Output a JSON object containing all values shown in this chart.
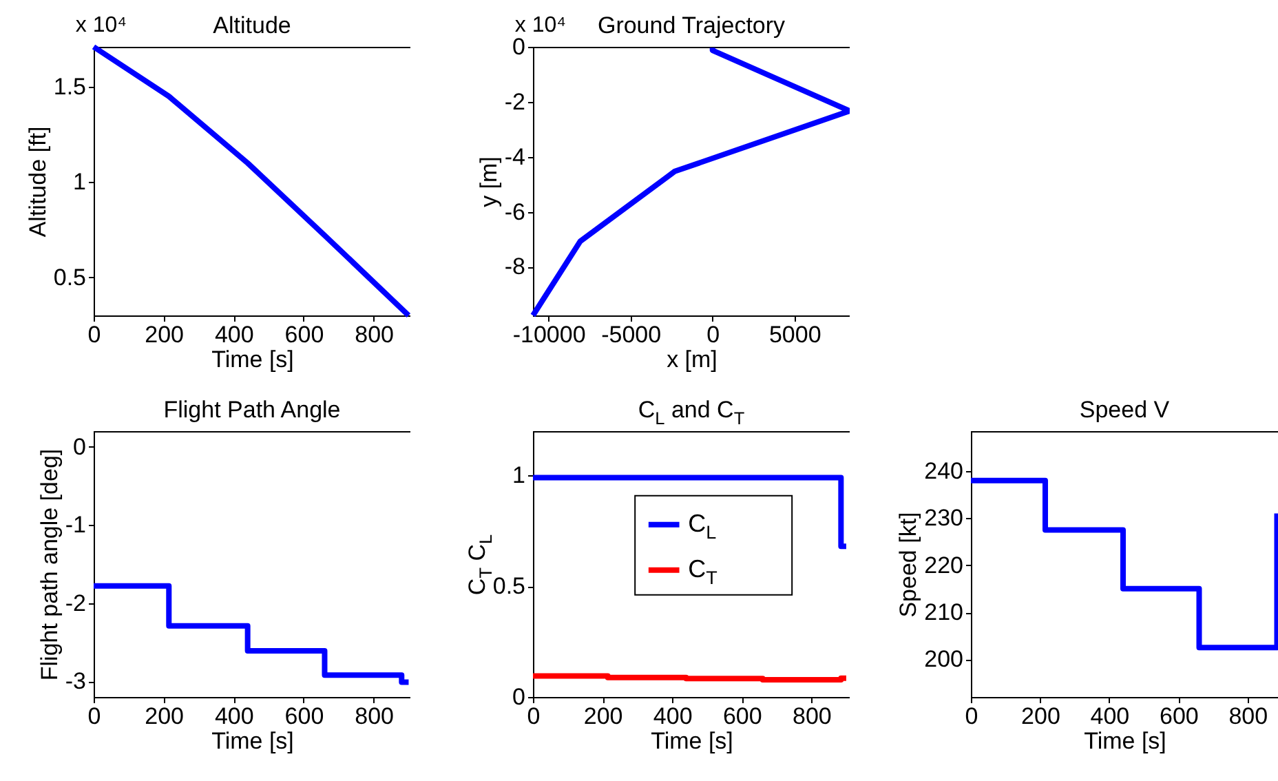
{
  "chart_data": [
    {
      "type": "line",
      "title": "Altitude",
      "xlabel": "Time [s]",
      "ylabel": "Altitude [ft]",
      "annotations": [
        "x 10⁴"
      ],
      "x": [
        0,
        215,
        440,
        660,
        900
      ],
      "series": [
        {
          "color": "#0000ff",
          "values": [
            1.71,
            1.45,
            1.1,
            0.72,
            0.3
          ]
        }
      ],
      "xlim": [
        0,
        905
      ],
      "xticks": [
        0,
        200,
        400,
        600,
        800
      ],
      "ylim": [
        0.3,
        1.71
      ],
      "yticks": [
        0.5,
        1,
        1.5
      ]
    },
    {
      "type": "line",
      "title": "Ground Trajectory",
      "xlabel": "x [m]",
      "ylabel": "y [m]",
      "annotations": [
        "x 10⁴"
      ],
      "series": [
        {
          "color": "#0000ff",
          "x": [
            0,
            0,
            8370,
            -2300,
            -8060,
            -10950
          ],
          "values": [
            -0.03,
            -0.13,
            -2.33,
            -4.53,
            -7.07,
            -9.77
          ]
        }
      ],
      "xlim": [
        -10950,
        8370
      ],
      "xticks": [
        -10000,
        -5000,
        0,
        5000
      ],
      "ylim": [
        -9.77,
        0
      ],
      "yticks": [
        -8,
        -6,
        -4,
        -2,
        0
      ]
    },
    {
      "type": "step",
      "title": "Flight Path Angle",
      "xlabel": "Time [s]",
      "ylabel": "Flight path angle [deg]",
      "x": [
        0,
        215,
        440,
        660,
        880,
        900
      ],
      "series": [
        {
          "color": "#0000ff",
          "values": [
            -1.78,
            -2.29,
            -2.61,
            -2.92,
            -3.01,
            -3.01
          ]
        }
      ],
      "xlim": [
        0,
        905
      ],
      "xticks": [
        0,
        200,
        400,
        600,
        800
      ],
      "ylim": [
        -3.2,
        0.2
      ],
      "yticks": [
        -3,
        -2,
        -1,
        0
      ]
    },
    {
      "type": "step",
      "title": "C$_{L}$ and C$_{T}$",
      "xlabel": "Time [s]",
      "ylabel": "C$_{T}$  C$_{L}$",
      "x": [
        0,
        215,
        440,
        660,
        885,
        900
      ],
      "series": [
        {
          "name": "C$_{L}$",
          "color": "#0000ff",
          "values": [
            0.99,
            0.99,
            0.99,
            0.99,
            0.68,
            0.68
          ]
        },
        {
          "name": "C$_{T}$",
          "color": "#ff0000",
          "values": [
            0.095,
            0.088,
            0.083,
            0.078,
            0.085,
            0.085
          ]
        }
      ],
      "legend": "top",
      "xlim": [
        0,
        910
      ],
      "xticks": [
        0,
        200,
        400,
        600,
        800
      ],
      "ylim": [
        0,
        1.2
      ],
      "yticks": [
        0,
        0.5,
        1
      ]
    },
    {
      "type": "step",
      "title": "Speed V",
      "xlabel": "Time [s]",
      "ylabel": "Speed [kt]",
      "x": [
        0,
        215,
        440,
        660,
        885
      ],
      "series": [
        {
          "color": "#0000ff",
          "values": [
            238,
            227.5,
            215,
            202.5,
            231
          ]
        }
      ],
      "xlim": [
        0,
        888
      ],
      "xticks": [
        0,
        200,
        400,
        600,
        800
      ],
      "ylim": [
        192,
        248.5
      ],
      "yticks": [
        200,
        210,
        220,
        230,
        240
      ]
    }
  ]
}
